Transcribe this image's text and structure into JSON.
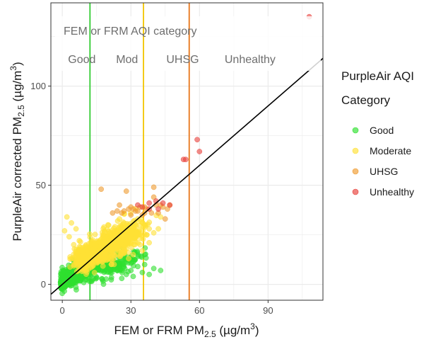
{
  "chart_data": {
    "type": "scatter",
    "xlabel": {
      "main": "FEM or FRM PM",
      "sub": "2.5",
      "unit_open": " (µg/m",
      "unit_sup": "3",
      "unit_close": ")"
    },
    "ylabel": {
      "main": "PurpleAir corrected PM",
      "sub": "2.5",
      "unit_open": " (µg/m",
      "unit_sup": "3",
      "unit_close": ")"
    },
    "xlim": [
      -5,
      114
    ],
    "ylim": [
      -8,
      142
    ],
    "x_ticks": [
      0,
      30,
      60,
      90
    ],
    "y_ticks": [
      0,
      50,
      100
    ],
    "grid": true,
    "fit_line": {
      "slope": 1.0,
      "intercept": 0
    },
    "thresholds": [
      {
        "x": 12.1,
        "color": "#33cc33"
      },
      {
        "x": 35.5,
        "color": "#f2c500"
      },
      {
        "x": 55.5,
        "color": "#e8771a"
      }
    ],
    "annotation": {
      "title": "FEM or FRM AQI category",
      "labels": [
        {
          "text": "Good",
          "x": 2.5
        },
        {
          "text": "Mod",
          "x": 23.5
        },
        {
          "text": "UHSG",
          "x": 45.5
        },
        {
          "text": "Unhealthy",
          "x": 71
        }
      ]
    },
    "legend": {
      "title_line1": "PurpleAir AQI",
      "title_line2": "Category",
      "position": "right"
    },
    "series": [
      {
        "name": "Good",
        "color": "#2ee02e",
        "clusters": [
          {
            "cx": 4,
            "cy": 4.5,
            "sx": 3,
            "sy": 2.6,
            "n": 320
          },
          {
            "cx": 12,
            "cy": 8,
            "sx": 5,
            "sy": 2.5,
            "n": 240
          },
          {
            "cx": 24,
            "cy": 9,
            "sx": 6,
            "sy": 2.2,
            "n": 120
          },
          {
            "cx": 2,
            "cy": 1.5,
            "sx": 1.5,
            "sy": 1.2,
            "n": 80
          }
        ],
        "points": [
          [
            30,
            7
          ],
          [
            35,
            6
          ],
          [
            33,
            9
          ],
          [
            38,
            5
          ],
          [
            40,
            8
          ],
          [
            28,
            5
          ],
          [
            36,
            10
          ],
          [
            43,
            7
          ],
          [
            31,
            4
          ],
          [
            26,
            3
          ],
          [
            1,
            1
          ],
          [
            0,
            -1
          ],
          [
            2,
            0
          ]
        ]
      },
      {
        "name": "Moderate",
        "color": "#ffe135",
        "clusters": [
          {
            "cx": 14,
            "cy": 16,
            "sx": 4,
            "sy": 3.5,
            "n": 300
          },
          {
            "cx": 22,
            "cy": 21,
            "sx": 5,
            "sy": 4,
            "n": 300
          },
          {
            "cx": 30,
            "cy": 25,
            "sx": 3.5,
            "sy": 3,
            "n": 120
          },
          {
            "cx": 9,
            "cy": 14,
            "sx": 2.5,
            "sy": 2.5,
            "n": 90
          }
        ],
        "points": [
          [
            2,
            34
          ],
          [
            4,
            31
          ],
          [
            1,
            27
          ],
          [
            3,
            24
          ],
          [
            6,
            28
          ],
          [
            5,
            20
          ],
          [
            7,
            17
          ],
          [
            33,
            33
          ],
          [
            36,
            30
          ],
          [
            38,
            28
          ],
          [
            37,
            25
          ],
          [
            34,
            20
          ],
          [
            35,
            17
          ],
          [
            40,
            26
          ],
          [
            42,
            28
          ],
          [
            31,
            15
          ],
          [
            29,
            13
          ],
          [
            38,
            21
          ],
          [
            43,
            34
          ],
          [
            25,
            33
          ],
          [
            20,
            30
          ]
        ]
      },
      {
        "name": "UHSG",
        "color": "#ef9b30",
        "clusters": [],
        "points": [
          [
            17,
            48
          ],
          [
            25,
            40
          ],
          [
            26,
            36
          ],
          [
            27,
            37
          ],
          [
            29,
            38
          ],
          [
            30,
            39
          ],
          [
            31,
            38
          ],
          [
            33,
            37
          ],
          [
            35,
            35
          ],
          [
            36,
            36
          ],
          [
            37,
            38
          ],
          [
            39,
            36
          ],
          [
            40,
            44
          ],
          [
            41,
            40
          ],
          [
            43,
            40
          ],
          [
            44,
            39
          ],
          [
            46,
            38
          ],
          [
            40,
            49
          ],
          [
            28,
            47
          ],
          [
            30,
            35
          ],
          [
            32,
            37
          ],
          [
            34,
            39
          ],
          [
            36,
            39
          ],
          [
            42,
            36
          ],
          [
            45,
            33
          ],
          [
            22,
            36
          ],
          [
            24,
            37
          ],
          [
            47,
            40
          ]
        ]
      },
      {
        "name": "Unhealthy",
        "color": "#e8403a",
        "clusters": [],
        "points": [
          [
            108,
            135
          ],
          [
            59,
            73
          ],
          [
            60,
            67
          ],
          [
            53,
            63
          ],
          [
            54,
            63
          ],
          [
            33,
            40
          ],
          [
            35,
            39
          ],
          [
            38,
            41
          ],
          [
            41,
            42
          ],
          [
            44,
            41
          ],
          [
            47,
            40
          ],
          [
            42,
            38
          ],
          [
            38,
            38
          ]
        ]
      }
    ]
  }
}
